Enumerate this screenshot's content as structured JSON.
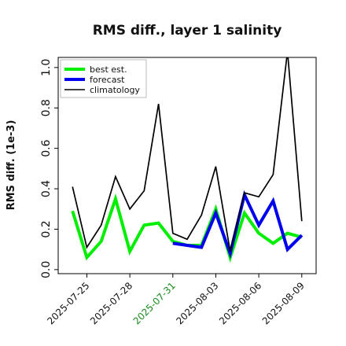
{
  "chart_data": {
    "type": "line",
    "title": "RMS diff., layer 1 salinity",
    "xlabel": "",
    "ylabel": "RMS diff. (1e-3)",
    "ylim": [
      -0.02,
      1.05
    ],
    "xlim": [
      "2025-07-23",
      "2025-08-10"
    ],
    "yticks": [
      0.0,
      0.2,
      0.4,
      0.6,
      0.8,
      1.0
    ],
    "ytick_labels": [
      "0.0",
      "0.2",
      "0.4",
      "0.6",
      "0.8",
      "1.0"
    ],
    "xticks": [
      "2025-07-25",
      "2025-07-28",
      "2025-07-31",
      "2025-08-03",
      "2025-08-06",
      "2025-08-09"
    ],
    "xtick_labels": [
      "2025-07-25",
      "2025-07-28",
      "2025-07-31",
      "2025-08-03",
      "2025-08-06",
      "2025-08-09"
    ],
    "xtick_colors": [
      "#111111",
      "#111111",
      "#1a8a1a",
      "#111111",
      "#111111",
      "#111111"
    ],
    "grid": false,
    "legend_position": "top-left",
    "series": [
      {
        "name": "best est.",
        "color": "#00ee00",
        "x": [
          "2025-07-24",
          "2025-07-25",
          "2025-07-26",
          "2025-07-27",
          "2025-07-28",
          "2025-07-29",
          "2025-07-30",
          "2025-07-31",
          "2025-08-01",
          "2025-08-02",
          "2025-08-03",
          "2025-08-04",
          "2025-08-05",
          "2025-08-06",
          "2025-08-07",
          "2025-08-08",
          "2025-08-09"
        ],
        "y": [
          0.29,
          0.06,
          0.14,
          0.35,
          0.09,
          0.22,
          0.23,
          0.14,
          0.12,
          0.12,
          0.3,
          0.06,
          0.28,
          0.18,
          0.13,
          0.18,
          0.16
        ]
      },
      {
        "name": "forecast",
        "color": "#0000ee",
        "x": [
          "2025-07-31",
          "2025-08-01",
          "2025-08-02",
          "2025-08-03",
          "2025-08-04",
          "2025-08-05",
          "2025-08-06",
          "2025-08-07",
          "2025-08-08",
          "2025-08-09"
        ],
        "y": [
          0.13,
          0.12,
          0.11,
          0.28,
          0.08,
          0.37,
          0.22,
          0.34,
          0.1,
          0.17
        ]
      },
      {
        "name": "climatology",
        "color": "#000000",
        "x": [
          "2025-07-24",
          "2025-07-25",
          "2025-07-26",
          "2025-07-27",
          "2025-07-28",
          "2025-07-29",
          "2025-07-30",
          "2025-07-31",
          "2025-08-01",
          "2025-08-02",
          "2025-08-03",
          "2025-08-04",
          "2025-08-05",
          "2025-08-06",
          "2025-08-07",
          "2025-08-08",
          "2025-08-09"
        ],
        "y": [
          0.41,
          0.11,
          0.22,
          0.46,
          0.3,
          0.39,
          0.82,
          0.18,
          0.15,
          0.27,
          0.51,
          0.09,
          0.38,
          0.36,
          0.47,
          1.08,
          0.24
        ]
      }
    ]
  }
}
